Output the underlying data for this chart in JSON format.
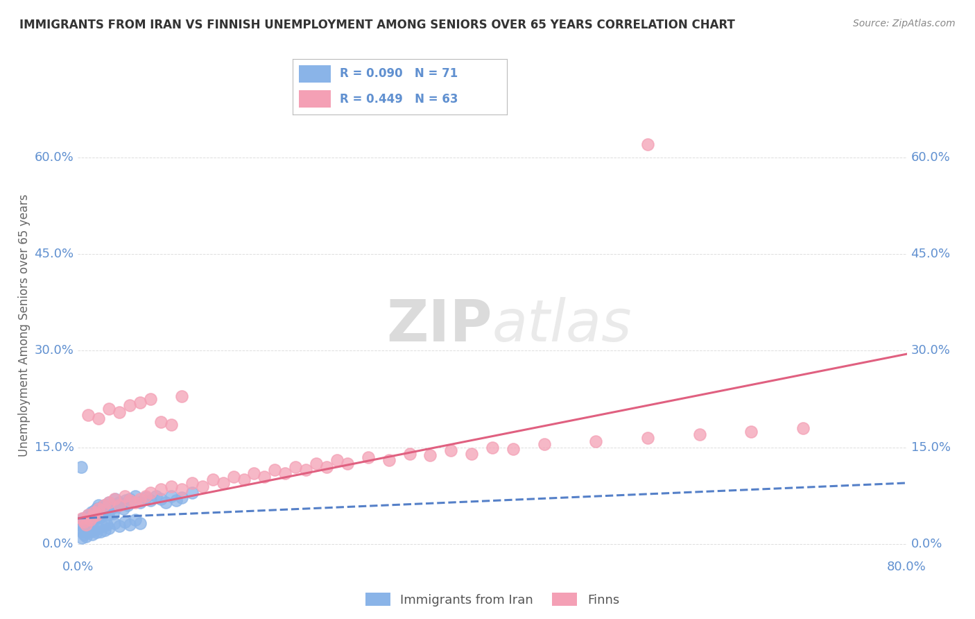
{
  "title": "IMMIGRANTS FROM IRAN VS FINNISH UNEMPLOYMENT AMONG SENIORS OVER 65 YEARS CORRELATION CHART",
  "source": "Source: ZipAtlas.com",
  "ylabel": "Unemployment Among Seniors over 65 years",
  "legend_label1": "Immigrants from Iran",
  "legend_label2": "Finns",
  "legend_r1": "R = 0.090",
  "legend_n1": "N = 71",
  "legend_r2": "R = 0.449",
  "legend_n2": "N = 63",
  "xlim": [
    0.0,
    0.8
  ],
  "ylim": [
    -0.02,
    0.7
  ],
  "yticks": [
    0.0,
    0.15,
    0.3,
    0.45,
    0.6
  ],
  "ytick_labels": [
    "0.0%",
    "15.0%",
    "30.0%",
    "45.0%",
    "60.0%"
  ],
  "xticks": [
    0.0,
    0.8
  ],
  "xtick_labels": [
    "0.0%",
    "80.0%"
  ],
  "color_blue": "#8ab4e8",
  "color_pink": "#f4a0b5",
  "color_blue_line": "#5580c8",
  "color_pink_line": "#e06080",
  "color_text_axis": "#6090d0",
  "color_text_title": "#333333",
  "color_text_source": "#888888",
  "watermark_zip": "ZIP",
  "watermark_atlas": "atlas",
  "blue_scatter_x": [
    0.002,
    0.003,
    0.004,
    0.005,
    0.006,
    0.007,
    0.008,
    0.009,
    0.01,
    0.011,
    0.012,
    0.013,
    0.014,
    0.015,
    0.016,
    0.017,
    0.018,
    0.019,
    0.02,
    0.021,
    0.022,
    0.023,
    0.024,
    0.025,
    0.026,
    0.027,
    0.028,
    0.029,
    0.03,
    0.032,
    0.034,
    0.036,
    0.038,
    0.04,
    0.042,
    0.044,
    0.046,
    0.048,
    0.05,
    0.055,
    0.06,
    0.065,
    0.07,
    0.075,
    0.08,
    0.085,
    0.09,
    0.095,
    0.1,
    0.11,
    0.004,
    0.006,
    0.008,
    0.01,
    0.012,
    0.014,
    0.016,
    0.018,
    0.02,
    0.022,
    0.024,
    0.026,
    0.028,
    0.03,
    0.035,
    0.04,
    0.045,
    0.05,
    0.055,
    0.06,
    0.003
  ],
  "blue_scatter_y": [
    0.03,
    0.025,
    0.02,
    0.04,
    0.035,
    0.028,
    0.032,
    0.038,
    0.045,
    0.042,
    0.038,
    0.05,
    0.035,
    0.048,
    0.052,
    0.04,
    0.055,
    0.045,
    0.06,
    0.05,
    0.042,
    0.058,
    0.048,
    0.055,
    0.06,
    0.052,
    0.058,
    0.045,
    0.065,
    0.055,
    0.048,
    0.07,
    0.058,
    0.065,
    0.062,
    0.055,
    0.068,
    0.06,
    0.07,
    0.075,
    0.065,
    0.072,
    0.068,
    0.075,
    0.07,
    0.065,
    0.075,
    0.068,
    0.072,
    0.08,
    0.01,
    0.015,
    0.012,
    0.018,
    0.02,
    0.015,
    0.022,
    0.018,
    0.025,
    0.02,
    0.028,
    0.022,
    0.03,
    0.025,
    0.032,
    0.028,
    0.035,
    0.03,
    0.038,
    0.032,
    0.12
  ],
  "pink_scatter_x": [
    0.004,
    0.006,
    0.008,
    0.01,
    0.012,
    0.014,
    0.016,
    0.018,
    0.02,
    0.025,
    0.03,
    0.035,
    0.04,
    0.045,
    0.05,
    0.055,
    0.06,
    0.065,
    0.07,
    0.08,
    0.09,
    0.1,
    0.11,
    0.12,
    0.13,
    0.14,
    0.15,
    0.16,
    0.17,
    0.18,
    0.19,
    0.2,
    0.21,
    0.22,
    0.23,
    0.24,
    0.25,
    0.26,
    0.28,
    0.3,
    0.32,
    0.34,
    0.36,
    0.38,
    0.4,
    0.42,
    0.45,
    0.5,
    0.55,
    0.6,
    0.65,
    0.7,
    0.01,
    0.02,
    0.03,
    0.04,
    0.05,
    0.06,
    0.07,
    0.08,
    0.09,
    0.1,
    0.55
  ],
  "pink_scatter_y": [
    0.04,
    0.035,
    0.03,
    0.045,
    0.038,
    0.042,
    0.05,
    0.045,
    0.055,
    0.06,
    0.065,
    0.07,
    0.06,
    0.075,
    0.068,
    0.065,
    0.07,
    0.075,
    0.08,
    0.085,
    0.09,
    0.085,
    0.095,
    0.09,
    0.1,
    0.095,
    0.105,
    0.1,
    0.11,
    0.105,
    0.115,
    0.11,
    0.12,
    0.115,
    0.125,
    0.12,
    0.13,
    0.125,
    0.135,
    0.13,
    0.14,
    0.138,
    0.145,
    0.14,
    0.15,
    0.148,
    0.155,
    0.16,
    0.165,
    0.17,
    0.175,
    0.18,
    0.2,
    0.195,
    0.21,
    0.205,
    0.215,
    0.22,
    0.225,
    0.19,
    0.185,
    0.23,
    0.62
  ],
  "blue_trend_x": [
    0.0,
    0.8
  ],
  "blue_trend_y": [
    0.04,
    0.095
  ],
  "pink_trend_x": [
    0.0,
    0.8
  ],
  "pink_trend_y": [
    0.04,
    0.295
  ],
  "background_color": "#ffffff",
  "grid_color": "#dddddd"
}
